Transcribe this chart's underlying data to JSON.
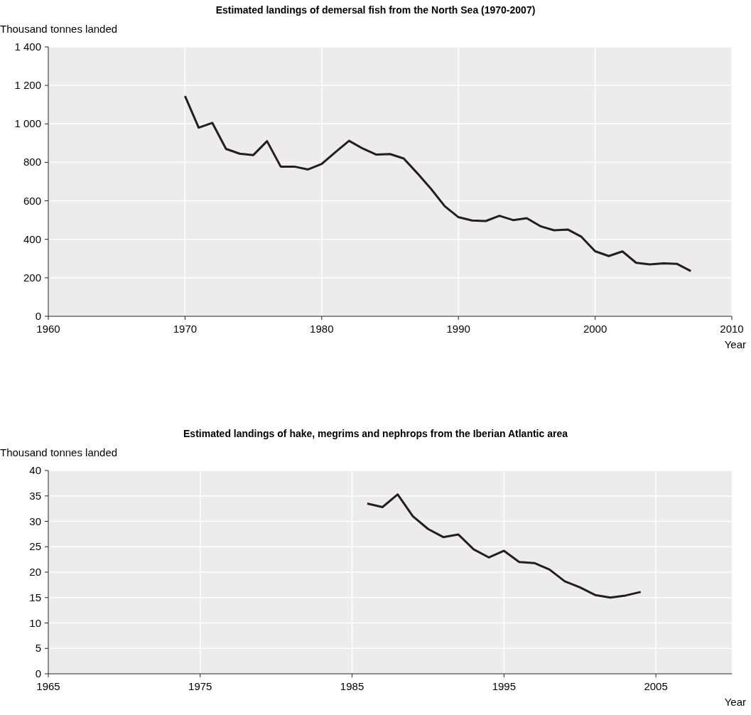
{
  "chart_data": [
    {
      "type": "line",
      "title": "Estimated landings of demersal fish from the North Sea (1970-2007)",
      "xlabel": "Year",
      "ylabel": "Thousand tonnes landed",
      "grid": true,
      "marker": "none",
      "line_style": "solid",
      "x": [
        1970,
        1971,
        1972,
        1973,
        1974,
        1975,
        1976,
        1977,
        1978,
        1979,
        1980,
        1981,
        1982,
        1983,
        1984,
        1985,
        1986,
        1987,
        1988,
        1989,
        1990,
        1991,
        1992,
        1993,
        1994,
        1995,
        1996,
        1997,
        1998,
        1999,
        2000,
        2001,
        2002,
        2003,
        2004,
        2005,
        2006,
        2007
      ],
      "series": [
        {
          "color": "#231f20",
          "values": [
            1145,
            980,
            1005,
            870,
            845,
            838,
            910,
            778,
            778,
            763,
            792,
            853,
            912,
            872,
            840,
            843,
            820,
            743,
            662,
            572,
            515,
            498,
            495,
            522,
            500,
            510,
            468,
            447,
            451,
            413,
            338,
            313,
            337,
            278,
            270,
            275,
            272,
            235
          ]
        }
      ],
      "xlim": [
        1960,
        2010
      ],
      "xticks": [
        1960,
        1970,
        1980,
        1990,
        2000,
        2010
      ],
      "ylim": [
        0,
        1400
      ],
      "yticks": [
        0,
        200,
        400,
        600,
        800,
        {
          "value": 1000,
          "label": "1 000"
        },
        {
          "value": 1200,
          "label": "1 200"
        },
        {
          "value": 1400,
          "label": "1 400"
        }
      ]
    },
    {
      "type": "line",
      "title": "Estimated landings of hake, megrims and nephrops from the Iberian Atlantic area",
      "xlabel": "Year",
      "ylabel": "Thousand tonnes landed",
      "grid": true,
      "marker": "none",
      "line_style": "solid",
      "x": [
        1986,
        1987,
        1988,
        1989,
        1990,
        1991,
        1992,
        1993,
        1994,
        1995,
        1996,
        1997,
        1998,
        1999,
        2000,
        2001,
        2002,
        2003,
        2004
      ],
      "series": [
        {
          "color": "#231f20",
          "values": [
            33.5,
            32.8,
            35.3,
            31.0,
            28.5,
            26.9,
            27.4,
            24.5,
            22.9,
            24.2,
            22.0,
            21.8,
            20.5,
            18.2,
            17.0,
            15.5,
            15.0,
            15.4,
            16.1
          ]
        }
      ],
      "xlim": [
        1965,
        2010
      ],
      "xticks": [
        1965,
        1975,
        1985,
        1995,
        2005
      ],
      "ylim": [
        0,
        40
      ],
      "yticks": [
        0,
        5,
        10,
        15,
        20,
        25,
        30,
        35,
        40
      ]
    }
  ]
}
